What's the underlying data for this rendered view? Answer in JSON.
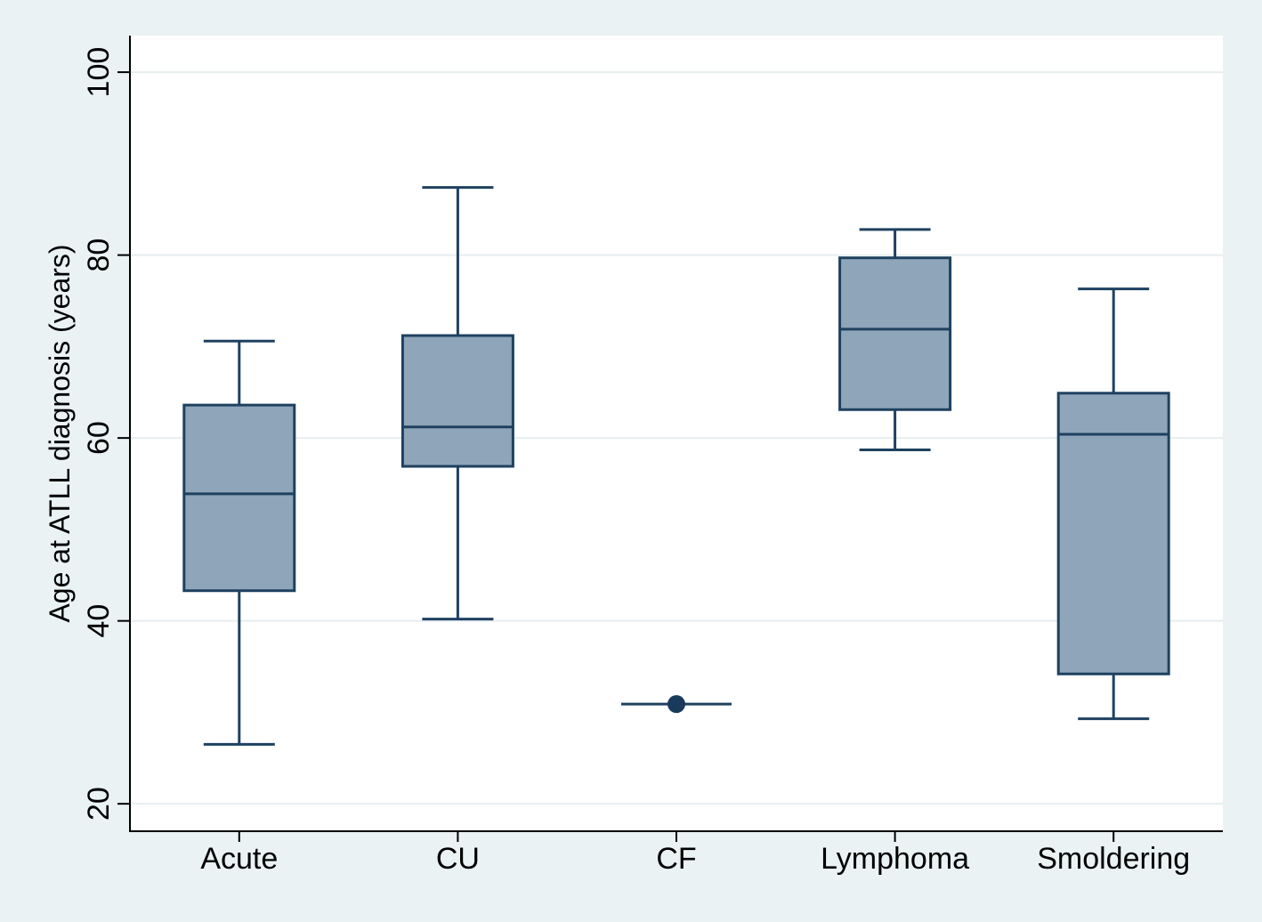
{
  "colors": {
    "outer_bg": "#eaf2f3",
    "plot_bg": "#ffffff",
    "box_fill": "#8ea5ba",
    "box_stroke": "#1f4160",
    "grid": "#e6eef0",
    "axis": "#000000",
    "point": "#1a3a5c"
  },
  "chart_data": {
    "type": "box",
    "title": "",
    "xlabel": "",
    "ylabel": "Age at ATLL diagnosis (years)",
    "ylim": [
      17,
      104
    ],
    "yticks": [
      20,
      40,
      60,
      80,
      100
    ],
    "grid": true,
    "categories": [
      "Acute",
      "CU",
      "CF",
      "Lymphoma",
      "Smoldering"
    ],
    "boxes": [
      {
        "name": "Acute",
        "whisker_low": 26.5,
        "q1": 43.3,
        "median": 53.9,
        "q3": 63.6,
        "whisker_high": 70.6
      },
      {
        "name": "CU",
        "whisker_low": 40.2,
        "q1": 56.9,
        "median": 61.2,
        "q3": 71.2,
        "whisker_high": 87.4
      },
      {
        "name": "CF",
        "whisker_low": 30.9,
        "q1": 30.9,
        "median": 30.9,
        "q3": 30.9,
        "whisker_high": 30.9,
        "points": [
          30.9
        ]
      },
      {
        "name": "Lymphoma",
        "whisker_low": 58.7,
        "q1": 63.1,
        "median": 71.9,
        "q3": 79.7,
        "whisker_high": 82.8
      },
      {
        "name": "Smoldering",
        "whisker_low": 29.3,
        "q1": 34.2,
        "median": 60.4,
        "q3": 64.9,
        "whisker_high": 76.3
      }
    ]
  }
}
